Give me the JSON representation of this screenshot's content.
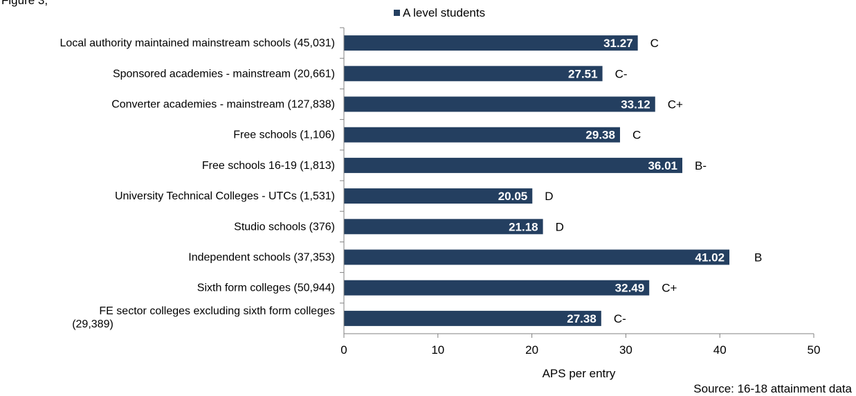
{
  "header_fragment": "Figure 3,",
  "source": "Source: 16-18 attainment data",
  "chart_data": {
    "type": "bar",
    "orientation": "horizontal",
    "title": "",
    "xlabel": "APS per entry",
    "ylabel": "",
    "xlim": [
      0,
      50
    ],
    "xticks": [
      0,
      10,
      20,
      30,
      40,
      50
    ],
    "grid": false,
    "legend": {
      "position": "top",
      "entries": [
        "A level students"
      ]
    },
    "categories": [
      "Local authority maintained mainstream schools  (45,031)",
      "Sponsored academies - mainstream  (20,661)",
      "Converter academies - mainstream (127,838)",
      "Free schools (1,106)",
      "Free schools 16-19 (1,813)",
      "University Technical Colleges - UTCs  (1,531)",
      "Studio schools  (376)",
      "Independent schools  (37,353)",
      "Sixth form colleges  (50,944)",
      "FE sector colleges excluding sixth form colleges (29,389)"
    ],
    "category_lines": [
      [
        "Local authority maintained mainstream schools  (45,031)"
      ],
      [
        "Sponsored academies - mainstream  (20,661)"
      ],
      [
        "Converter academies - mainstream (127,838)"
      ],
      [
        "Free schools (1,106)"
      ],
      [
        "Free schools 16-19 (1,813)"
      ],
      [
        "University Technical Colleges - UTCs  (1,531)"
      ],
      [
        "Studio schools  (376)"
      ],
      [
        "Independent schools  (37,353)"
      ],
      [
        "Sixth form colleges  (50,944)"
      ],
      [
        "FE sector colleges excluding sixth form colleges",
        "(29,389)"
      ]
    ],
    "series": [
      {
        "name": "A level students",
        "color": "#243F60",
        "values": [
          31.27,
          27.51,
          33.12,
          29.38,
          36.01,
          20.05,
          21.18,
          41.02,
          32.49,
          27.38
        ]
      }
    ],
    "value_labels": [
      "31.27",
      "27.51",
      "33.12",
      "29.38",
      "36.01",
      "20.05",
      "21.18",
      "41.02",
      "32.49",
      "27.38"
    ],
    "grades": [
      "C",
      "C-",
      "C+",
      "C",
      "B-",
      "D",
      "D",
      "B",
      "C+",
      "C-"
    ]
  }
}
